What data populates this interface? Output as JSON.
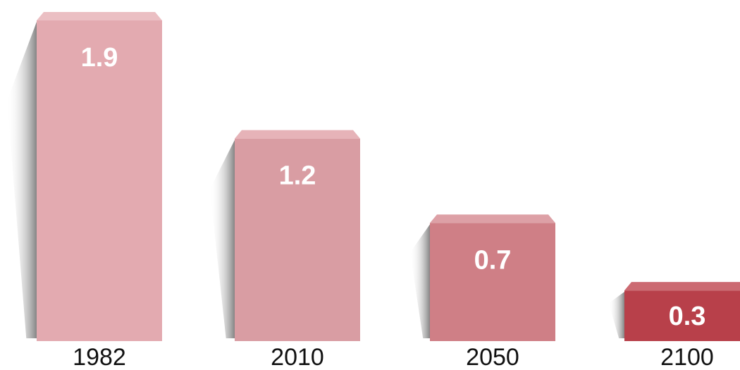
{
  "chart_data": {
    "type": "bar",
    "categories": [
      "1982",
      "2010",
      "2050",
      "2100"
    ],
    "values": [
      1.9,
      1.2,
      0.7,
      0.3
    ],
    "value_labels": [
      "1.9",
      "1.2",
      "0.7",
      "0.3"
    ],
    "ylim": [
      0,
      1.9
    ],
    "grid": false,
    "legend": "none",
    "colors": {
      "bars": [
        "#e3aab0",
        "#d99da3",
        "#cf7f86",
        "#b8404a"
      ],
      "bar_tops": [
        "#ebbfc3",
        "#e6b3b8",
        "#dda0a6",
        "#cc6a72"
      ],
      "shadow": "#9a9a9a"
    }
  }
}
